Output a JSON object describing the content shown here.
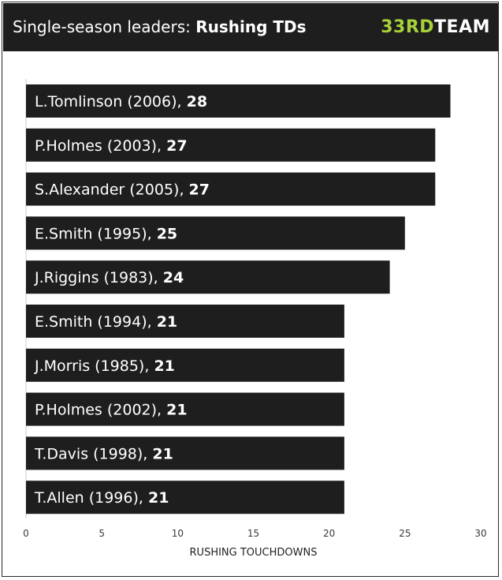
{
  "header": {
    "title_prefix": "Single-season leaders: ",
    "title_bold": "Rushing TDs",
    "logo_accent": "33RD",
    "logo_rest": "TEAM",
    "logo_accent_color": "#a6d13a",
    "background_color": "#1e1e1e"
  },
  "chart_data": {
    "type": "bar",
    "orientation": "horizontal",
    "title": "Single-season leaders: Rushing TDs",
    "xlabel": "RUSHING TOUCHDOWNS",
    "ylabel": "",
    "xlim": [
      0,
      30
    ],
    "xticks": [
      0,
      5,
      10,
      15,
      20,
      25,
      30
    ],
    "grid": false,
    "bar_color": "#1e1e1e",
    "categories": [
      "L.Tomlinson  (2006)",
      "P.Holmes  (2003)",
      "S.Alexander  (2005)",
      "E.Smith  (1995)",
      "J.Riggins  (1983)",
      "E.Smith  (1994)",
      "J.Morris  (1985)",
      "P.Holmes  (2002)",
      "T.Davis  (1998)",
      "T.Allen  (1996)"
    ],
    "values": [
      28,
      27,
      27,
      25,
      24,
      21,
      21,
      21,
      21,
      21
    ]
  }
}
